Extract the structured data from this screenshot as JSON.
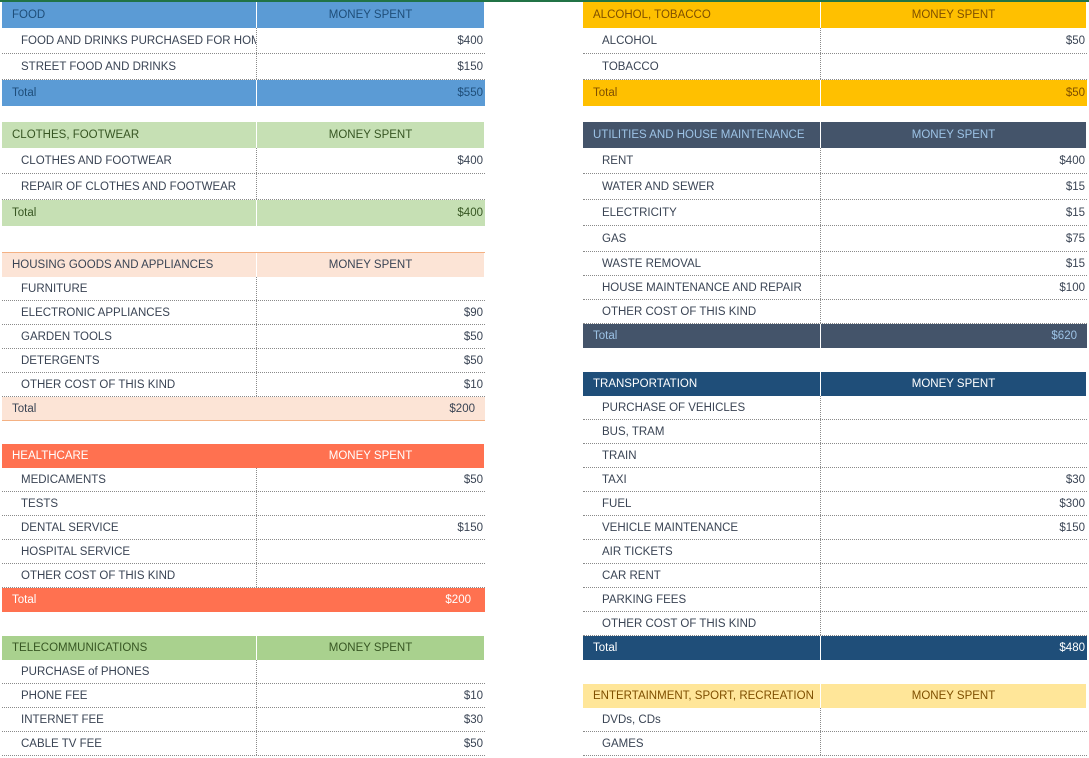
{
  "header_label": "MONEY SPENT",
  "total_label": "Total",
  "left_tables": [
    {
      "id": "food",
      "title": "FOOD",
      "total": "$550",
      "hdr_bg": "#5b9bd5",
      "hdr_fg": "#1f4e79",
      "tot_bg": "#5b9bd5",
      "tot_fg": "#1f4e79",
      "items": [
        {
          "label": "FOOD AND DRINKS PURCHASED FOR HOME",
          "value": "$400"
        },
        {
          "label": "STREET FOOD AND DRINKS",
          "value": "$150"
        }
      ]
    },
    {
      "id": "clothes",
      "title": "CLOTHES, FOOTWEAR",
      "total": "$400",
      "hdr_bg": "#c6e0b4",
      "hdr_fg": "#375623",
      "tot_bg": "#c6e0b4",
      "tot_fg": "#375623",
      "items": [
        {
          "label": "CLOTHES AND FOOTWEAR",
          "value": "$400"
        },
        {
          "label": "REPAIR OF CLOTHES AND FOOTWEAR",
          "value": ""
        }
      ]
    },
    {
      "id": "housing",
      "title": "HOUSING GOODS AND APPLIANCES",
      "total": "$200",
      "hdr_bg": "#fce4d6",
      "hdr_fg": "#3a4454",
      "tot_bg": "#fce4d6",
      "tot_fg": "#3a4454",
      "items": [
        {
          "label": "FURNITURE",
          "value": ""
        },
        {
          "label": "ELECTRONIC APPLIANCES",
          "value": "$90"
        },
        {
          "label": "GARDEN TOOLS",
          "value": "$50"
        },
        {
          "label": "DETERGENTS",
          "value": "$50"
        },
        {
          "label": "OTHER COST OF THIS KIND",
          "value": "$10"
        }
      ]
    },
    {
      "id": "healthcare",
      "title": "HEALTHCARE",
      "total": "$200",
      "hdr_bg": "#ff7150",
      "hdr_fg": "#ffffff",
      "tot_bg": "#ff7150",
      "tot_fg": "#ffffff",
      "items": [
        {
          "label": "MEDICAMENTS",
          "value": "$50"
        },
        {
          "label": "TESTS",
          "value": ""
        },
        {
          "label": "DENTAL SERVICE",
          "value": "$150"
        },
        {
          "label": "HOSPITAL SERVICE",
          "value": ""
        },
        {
          "label": "OTHER COST OF THIS KIND",
          "value": ""
        }
      ]
    },
    {
      "id": "telecom",
      "title": "TELECOMMUNICATIONS",
      "total": "",
      "hdr_bg": "#a9d18e",
      "hdr_fg": "#375623",
      "tot_bg": "#a9d18e",
      "tot_fg": "#375623",
      "items": [
        {
          "label": "PURCHASE of PHONES",
          "value": ""
        },
        {
          "label": "PHONE FEE",
          "value": "$10"
        },
        {
          "label": "INTERNET FEE",
          "value": "$30"
        },
        {
          "label": "CABLE TV FEE",
          "value": "$50"
        }
      ]
    }
  ],
  "right_tables": [
    {
      "id": "alcohol",
      "title": "ALCOHOL, TOBACCO",
      "total": "$50",
      "hdr_bg": "#ffc000",
      "hdr_fg": "#7f4f00",
      "tot_bg": "#ffc000",
      "tot_fg": "#7f4f00",
      "items": [
        {
          "label": "ALCOHOL",
          "value": "$50"
        },
        {
          "label": "TOBACCO",
          "value": ""
        }
      ]
    },
    {
      "id": "utilities",
      "title": "UTILITIES AND HOUSE MAINTENANCE",
      "total": "$620",
      "hdr_bg": "#44546a",
      "hdr_fg": "#9dc3e6",
      "tot_bg": "#44546a",
      "tot_fg": "#9dc3e6",
      "items": [
        {
          "label": "RENT",
          "value": "$400"
        },
        {
          "label": "WATER AND SEWER",
          "value": "$15"
        },
        {
          "label": "ELECTRICITY",
          "value": "$15"
        },
        {
          "label": "GAS",
          "value": "$75"
        },
        {
          "label": "WASTE REMOVAL",
          "value": "$15"
        },
        {
          "label": "HOUSE MAINTENANCE AND REPAIR",
          "value": "$100"
        },
        {
          "label": "OTHER COST OF THIS KIND",
          "value": ""
        }
      ]
    },
    {
      "id": "transport",
      "title": "TRANSPORTATION",
      "total": "$480",
      "hdr_bg": "#1f4e79",
      "hdr_fg": "#ffffff",
      "tot_bg": "#1f4e79",
      "tot_fg": "#ffffff",
      "items": [
        {
          "label": "PURCHASE OF VEHICLES",
          "value": ""
        },
        {
          "label": "BUS, TRAM",
          "value": ""
        },
        {
          "label": "TRAIN",
          "value": ""
        },
        {
          "label": "TAXI",
          "value": "$30"
        },
        {
          "label": "FUEL",
          "value": "$300"
        },
        {
          "label": "VEHICLE MAINTENANCE",
          "value": "$150"
        },
        {
          "label": "AIR TICKETS",
          "value": ""
        },
        {
          "label": "CAR RENT",
          "value": ""
        },
        {
          "label": "PARKING FEES",
          "value": ""
        },
        {
          "label": "OTHER COST OF THIS KIND",
          "value": ""
        }
      ]
    },
    {
      "id": "entertainment",
      "title": "ENTERTAINMENT, SPORT, RECREATION",
      "total": "",
      "hdr_bg": "#ffe699",
      "hdr_fg": "#7f4f00",
      "tot_bg": "#ffe699",
      "tot_fg": "#7f4f00",
      "items": [
        {
          "label": "DVDs, CDs",
          "value": ""
        },
        {
          "label": "GAMES",
          "value": ""
        }
      ]
    }
  ]
}
